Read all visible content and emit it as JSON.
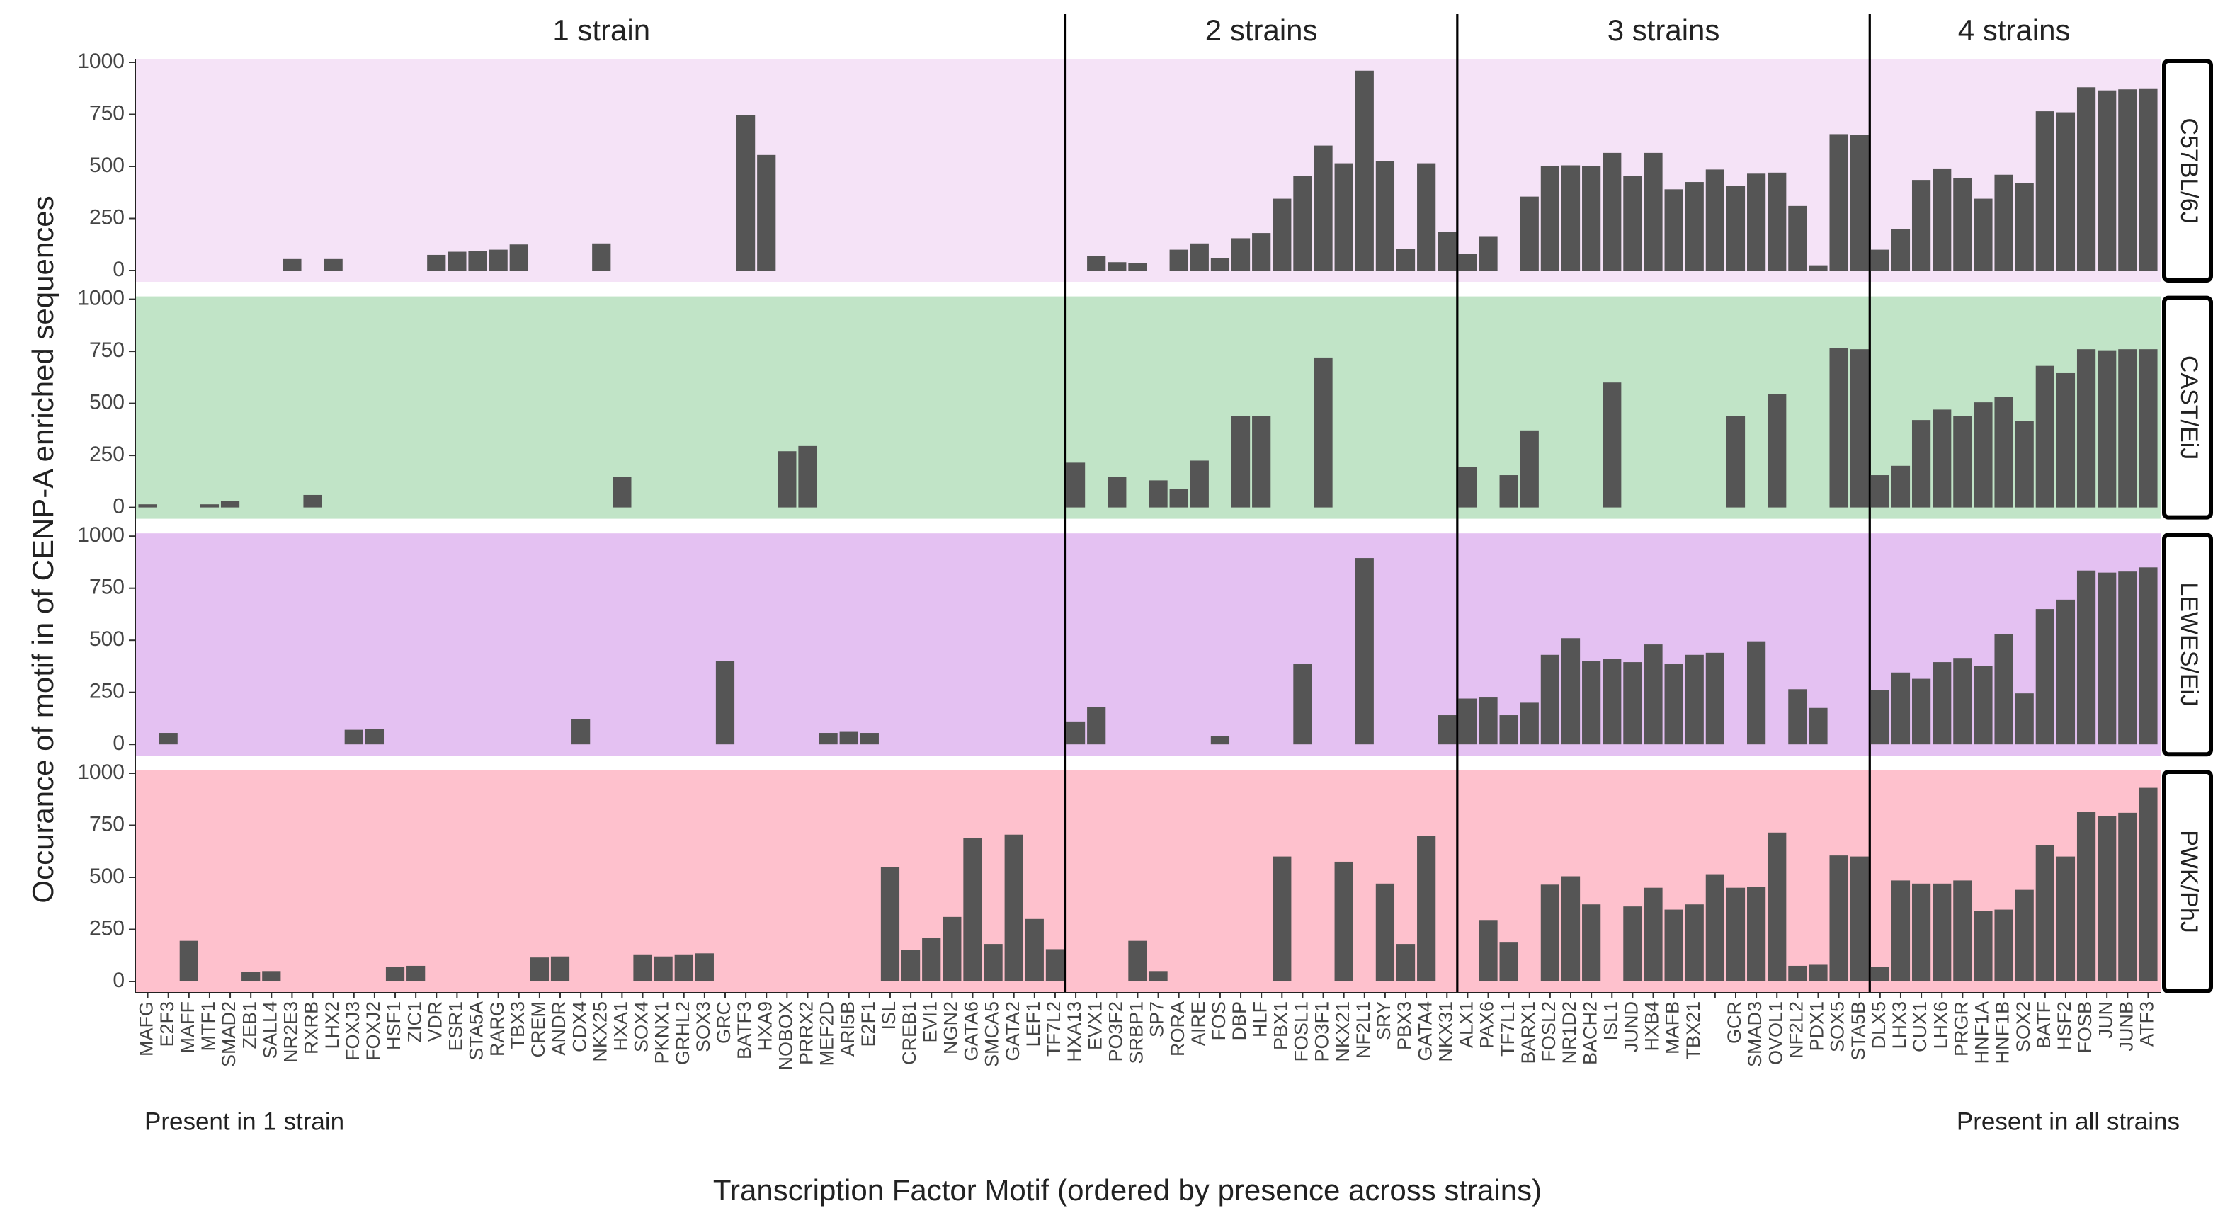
{
  "chart_data": {
    "type": "bar",
    "y_label": "Occurance of motif in of CENP-A enriched sequences",
    "x_label": "Transcription Factor Motif (ordered by presence across strains)",
    "annotations": [
      "Present in 1 strain",
      "Present in all strains"
    ],
    "ylim": [
      0,
      1000
    ],
    "yticks": [
      0,
      250,
      500,
      750,
      1000
    ],
    "grid": false,
    "bar_color": "#555555",
    "groups": [
      {
        "label": "1 strain",
        "categories": [
          "MAFG",
          "E2F3",
          "MAFF",
          "MTF1",
          "SMAD2",
          "ZEB1",
          "SALL4",
          "NR2E3",
          "RXRB",
          "LHX2",
          "FOXJ3",
          "FOXJ2",
          "HSF1",
          "ZIC1",
          "VDR",
          "ESR1",
          "STA5A",
          "RARG",
          "TBX3",
          "CREM",
          "ANDR",
          "CDX4",
          "NKX25",
          "HXA1",
          "SOX4",
          "PKNX1",
          "GRHL2",
          "SOX3",
          "GRC",
          "BATF3",
          "HXA9",
          "NOBOX",
          "PRRX2",
          "MEF2D",
          "ARI5B",
          "E2F1",
          "ISL",
          "CREB1",
          "EVI1",
          "NGN2",
          "GATA6",
          "SMCA5",
          "GATA2",
          "LEF1",
          "TF7L2"
        ]
      },
      {
        "label": "2 strains",
        "categories": [
          "HXA13",
          "EVX1",
          "PO3F2",
          "SRBP1",
          "SP7",
          "RORA",
          "AIRE",
          "FOS",
          "DBP",
          "HLF",
          "PBX1",
          "FOSL1",
          "PO3F1",
          "NKX21",
          "NF2L1",
          "SRY",
          "PBX3",
          "GATA4",
          "NKX31"
        ]
      },
      {
        "label": "3 strains",
        "categories": [
          "ALX1",
          "PAX6",
          "TF7L1",
          "BARX1",
          "FOSL2",
          "NR1D2",
          "BACH2",
          "ISL1",
          "JUND",
          "HXB4",
          "MAFB",
          "TBX21",
          null,
          "GCR",
          "SMAD3",
          "OVOL1",
          "NF2L2",
          "PDX1",
          "SOX5",
          "STA5B"
        ]
      },
      {
        "label": "4 strains",
        "categories": [
          "DLX5",
          "LHX3",
          "CUX1",
          "LHX6",
          "PRGR",
          "HNF1A",
          "HNF1B",
          "SOX2",
          "BATF",
          "HSF2",
          "FOSB",
          "JUN",
          "JUNB",
          "ATF3"
        ]
      }
    ],
    "facets": [
      {
        "label": "C57BL/6J",
        "background": "#f5e3f7",
        "values": [
          [
            0,
            0,
            0,
            0,
            0,
            0,
            0,
            55,
            0,
            55,
            0,
            0,
            0,
            0,
            75,
            90,
            95,
            100,
            125,
            0,
            0,
            0,
            130,
            0,
            0,
            0,
            0,
            0,
            0,
            745,
            555,
            0,
            0,
            0,
            0,
            0,
            0,
            0,
            0,
            0,
            0,
            0,
            0,
            0,
            0
          ],
          [
            0,
            70,
            40,
            35,
            0,
            100,
            130,
            60,
            155,
            180,
            345,
            455,
            600,
            515,
            960,
            525,
            105,
            515,
            185
          ],
          [
            80,
            165,
            0,
            355,
            500,
            505,
            500,
            565,
            455,
            565,
            390,
            425,
            485,
            405,
            465,
            470,
            310,
            25,
            655,
            650
          ],
          [
            100,
            200,
            435,
            490,
            445,
            345,
            460,
            420,
            765,
            760,
            880,
            865,
            870,
            875
          ]
        ]
      },
      {
        "label": "CAST/EiJ",
        "background": "#c1e4c7",
        "values": [
          [
            15,
            0,
            0,
            15,
            30,
            0,
            0,
            0,
            60,
            0,
            0,
            0,
            0,
            0,
            0,
            0,
            0,
            0,
            0,
            0,
            0,
            0,
            0,
            145,
            0,
            0,
            0,
            0,
            0,
            0,
            0,
            270,
            295,
            0,
            0,
            0,
            0,
            0,
            0,
            0,
            0,
            0,
            0,
            0,
            0
          ],
          [
            215,
            0,
            145,
            0,
            130,
            90,
            225,
            0,
            440,
            440,
            0,
            0,
            720,
            0,
            0,
            0,
            0,
            0,
            0
          ],
          [
            195,
            0,
            155,
            370,
            0,
            0,
            0,
            600,
            0,
            0,
            0,
            0,
            0,
            440,
            0,
            545,
            0,
            0,
            765,
            760
          ],
          [
            155,
            200,
            420,
            470,
            440,
            505,
            530,
            415,
            680,
            645,
            760,
            755,
            760,
            760
          ]
        ]
      },
      {
        "label": "LEWES/EiJ",
        "background": "#e4c1f2",
        "values": [
          [
            0,
            55,
            0,
            0,
            0,
            0,
            0,
            0,
            0,
            0,
            70,
            75,
            0,
            0,
            0,
            0,
            0,
            0,
            0,
            0,
            0,
            120,
            0,
            0,
            0,
            0,
            0,
            0,
            400,
            0,
            0,
            0,
            0,
            55,
            60,
            55,
            0,
            0,
            0,
            0,
            0,
            0,
            0,
            0,
            0
          ],
          [
            110,
            180,
            0,
            0,
            0,
            0,
            0,
            40,
            0,
            0,
            0,
            385,
            0,
            0,
            895,
            0,
            0,
            0,
            140
          ],
          [
            220,
            225,
            140,
            200,
            430,
            510,
            400,
            410,
            395,
            480,
            385,
            430,
            440,
            0,
            495,
            0,
            265,
            175,
            0,
            0
          ],
          [
            260,
            345,
            315,
            395,
            415,
            375,
            530,
            245,
            650,
            695,
            835,
            825,
            830,
            850
          ]
        ]
      },
      {
        "label": "PWK/PhJ",
        "background": "#fec1cd",
        "values": [
          [
            0,
            0,
            195,
            0,
            0,
            45,
            50,
            0,
            0,
            0,
            0,
            0,
            70,
            75,
            0,
            0,
            0,
            0,
            0,
            115,
            120,
            0,
            0,
            0,
            130,
            120,
            130,
            135,
            0,
            0,
            0,
            0,
            0,
            0,
            0,
            0,
            550,
            150,
            210,
            310,
            690,
            180,
            705,
            300,
            155
          ],
          [
            0,
            0,
            0,
            195,
            50,
            0,
            0,
            0,
            0,
            0,
            600,
            0,
            0,
            575,
            0,
            470,
            180,
            700,
            0
          ],
          [
            0,
            295,
            190,
            0,
            465,
            505,
            370,
            0,
            360,
            450,
            345,
            370,
            515,
            450,
            455,
            715,
            75,
            80,
            605,
            600
          ],
          [
            70,
            485,
            470,
            470,
            485,
            340,
            345,
            440,
            655,
            600,
            815,
            795,
            810,
            930
          ]
        ]
      }
    ]
  }
}
